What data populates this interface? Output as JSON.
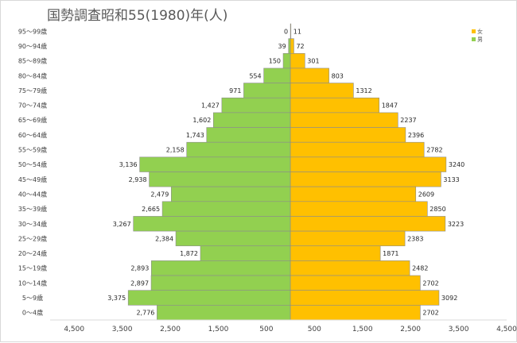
{
  "chart_data": {
    "type": "bar",
    "orientation": "horizontal-pyramid",
    "title": "国勢調査昭和55(1980)年(人)",
    "categories": [
      "95〜99歳",
      "90〜94歳",
      "85〜89歳",
      "80〜84歳",
      "75〜79歳",
      "70〜74歳",
      "65〜69歳",
      "60〜64歳",
      "55〜59歳",
      "50〜54歳",
      "45〜49歳",
      "40〜44歳",
      "35〜39歳",
      "30〜34歳",
      "25〜29歳",
      "20〜24歳",
      "15〜19歳",
      "10〜14歳",
      "5〜9歳",
      "0〜4歳"
    ],
    "series": [
      {
        "name": "男",
        "color": "#92d050",
        "side": "left",
        "values": [
          0,
          39,
          150,
          554,
          971,
          1427,
          1602,
          1743,
          2158,
          3136,
          2938,
          2479,
          2665,
          3267,
          2384,
          1872,
          2893,
          2897,
          3375,
          2776
        ],
        "labels": [
          "0",
          "39",
          "150",
          "554",
          "971",
          "1,427",
          "1,602",
          "1,743",
          "2,158",
          "3,136",
          "2,938",
          "2,479",
          "2,665",
          "3,267",
          "2,384",
          "1,872",
          "2,893",
          "2,897",
          "3,375",
          "2,776"
        ]
      },
      {
        "name": "女",
        "color": "#ffc000",
        "side": "right",
        "values": [
          11,
          72,
          301,
          803,
          1312,
          1847,
          2237,
          2396,
          2782,
          3240,
          3133,
          2609,
          2850,
          3223,
          2383,
          1871,
          2482,
          2702,
          3092,
          2702
        ],
        "labels": [
          "11",
          "72",
          "301",
          "803",
          "1312",
          "1847",
          "2237",
          "2396",
          "2782",
          "3240",
          "3133",
          "2609",
          "2850",
          "3223",
          "2383",
          "1871",
          "2482",
          "2702",
          "3092",
          "2702"
        ]
      }
    ],
    "x_tick_labels": [
      "4,500",
      "3,500",
      "2,500",
      "1,500",
      "500",
      "500",
      "1,500",
      "2,500",
      "3,500",
      "4,500"
    ],
    "x_tick_values": [
      -5000,
      -4000,
      -3000,
      -2000,
      -1000,
      0,
      1000,
      2000,
      3000,
      4000
    ],
    "x_tick_label_offset": 500,
    "xlim": [
      -5000,
      4500
    ],
    "grid": false,
    "legend_position": "top-right",
    "axis_color": "#d9d9d9",
    "border_color": "#8c8c8c"
  }
}
